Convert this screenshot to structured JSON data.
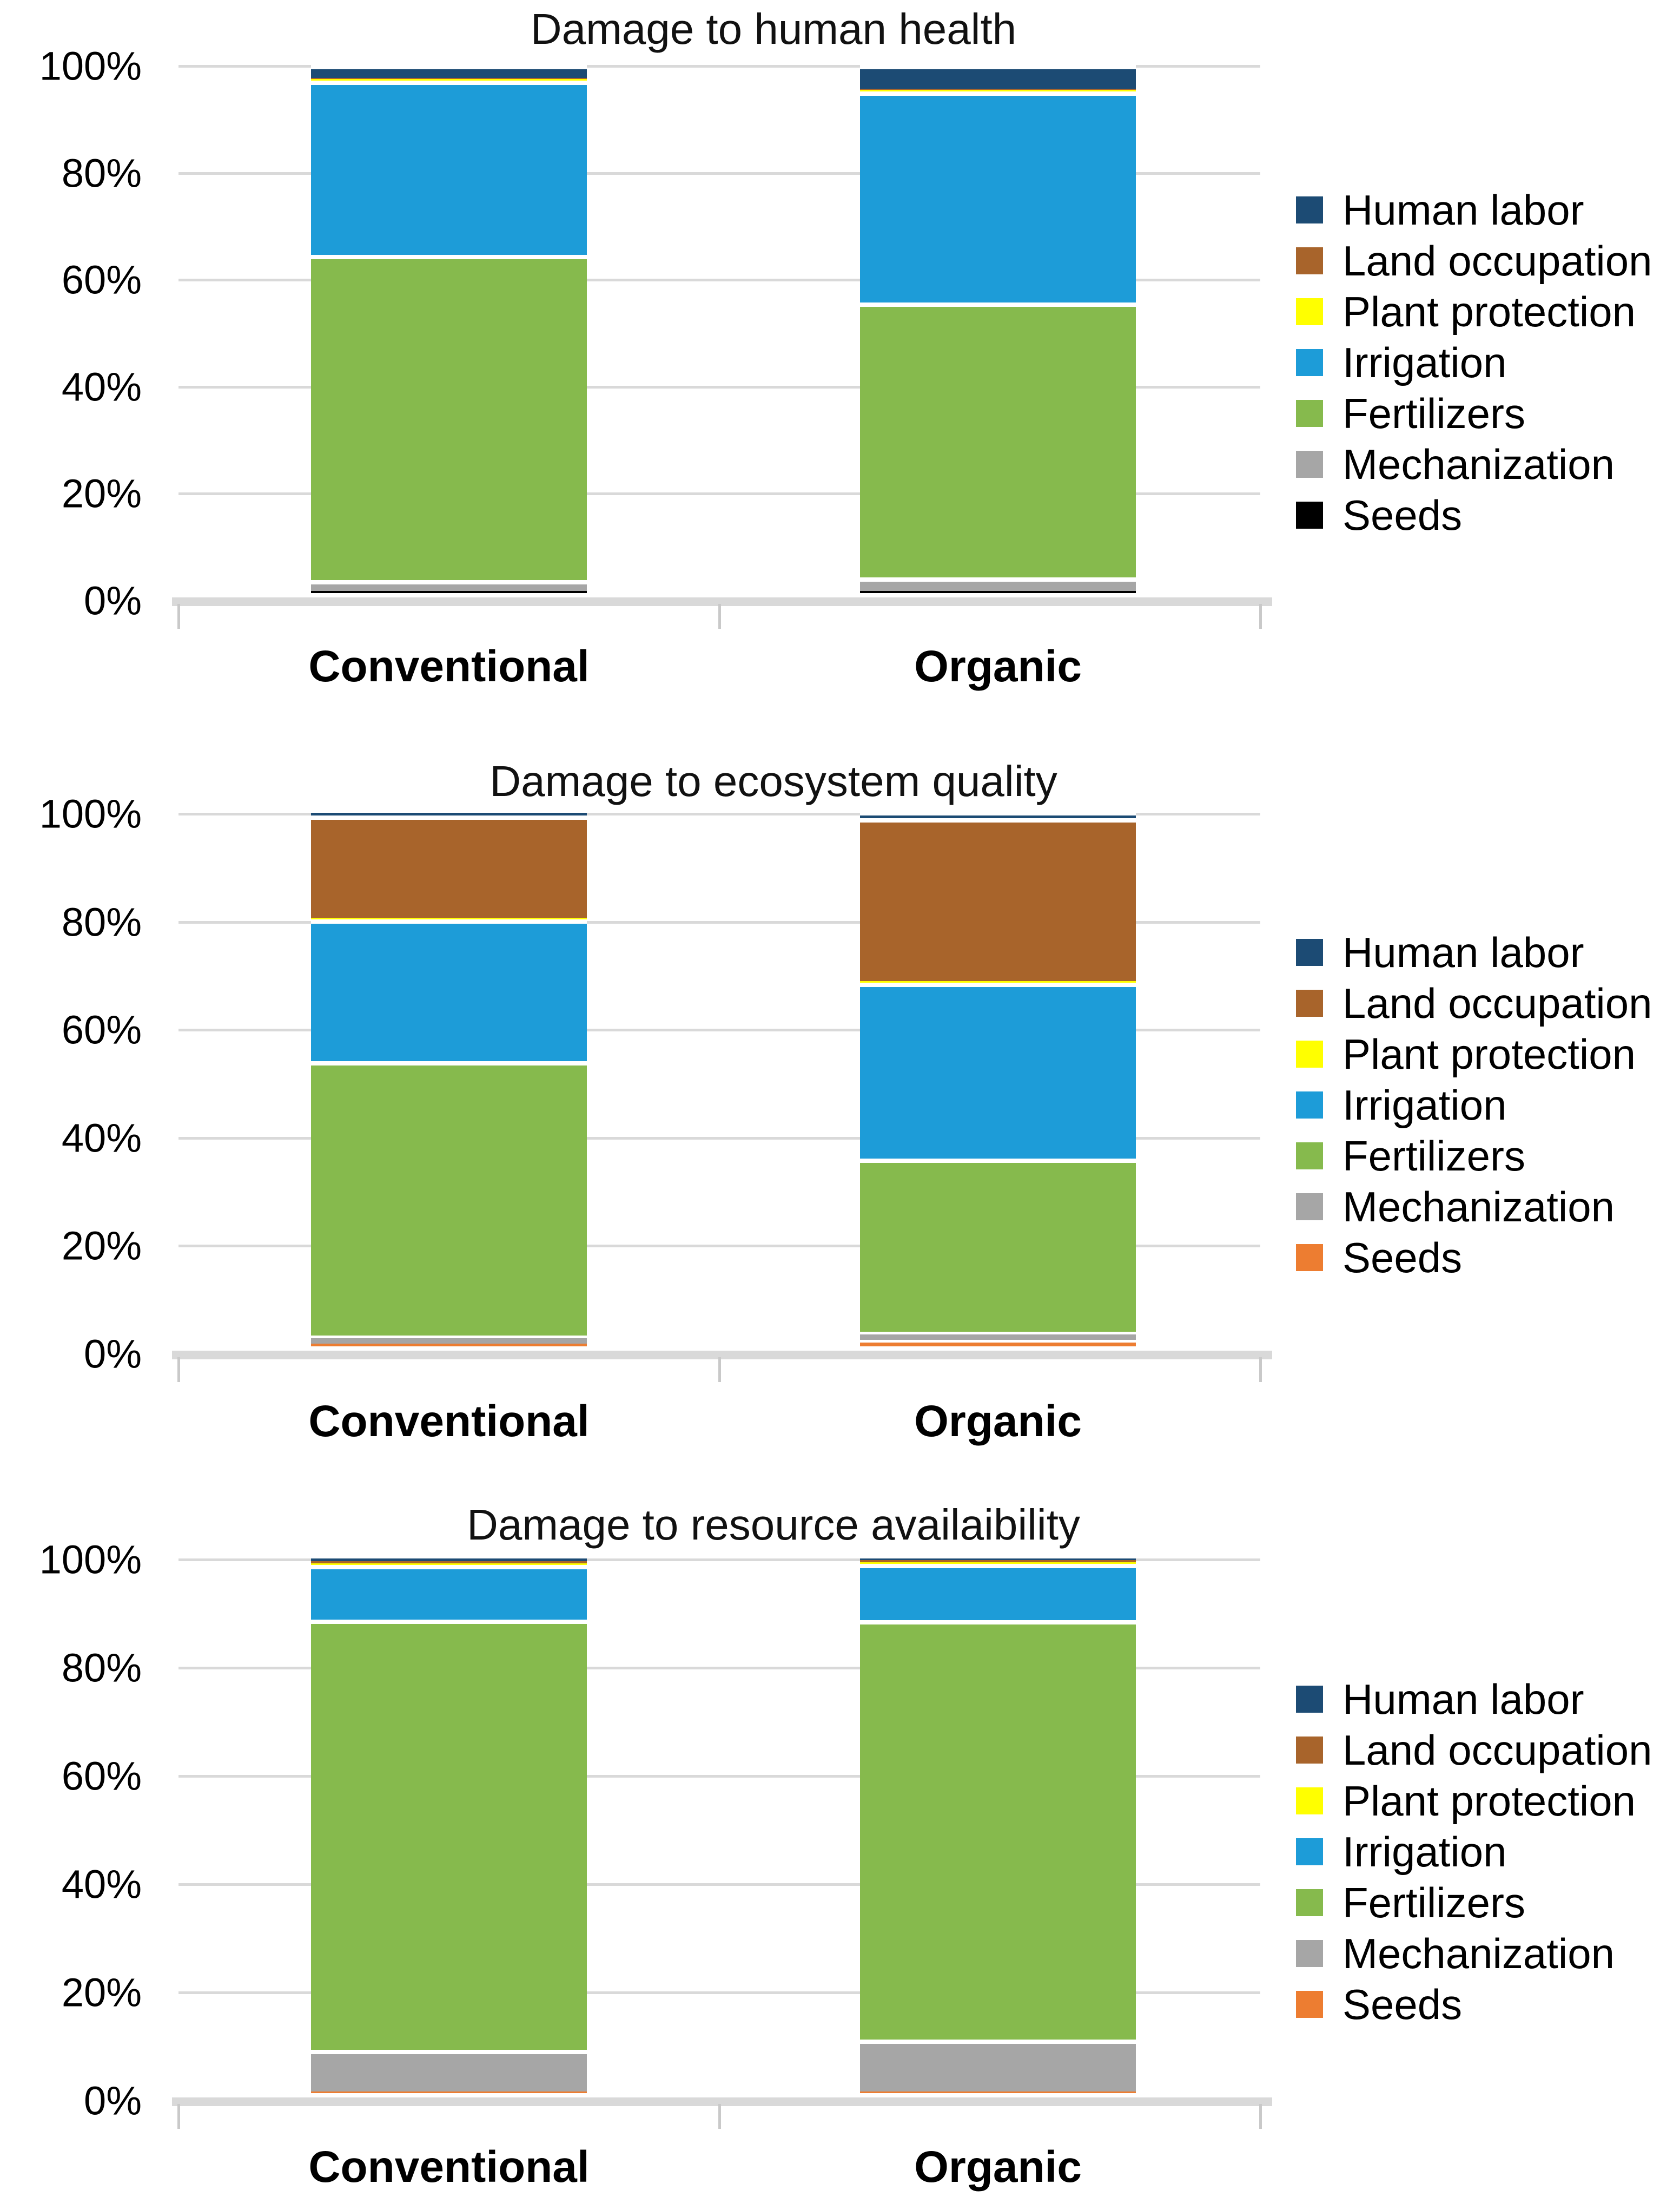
{
  "page": {
    "background": "#ffffff",
    "text_color": "#000000",
    "gridline_color": "#d9d9d9"
  },
  "chart_data": [
    {
      "type": "bar",
      "stacked": true,
      "units": "percent",
      "title": "Damage to human health",
      "categories": [
        "Conventional",
        "Organic"
      ],
      "series": [
        {
          "name": "Seeds",
          "color": "#000000",
          "values": [
            0.4,
            0.4
          ]
        },
        {
          "name": "Mechanization",
          "color": "#a6a6a6",
          "values": [
            2.1,
            2.6
          ]
        },
        {
          "name": "Fertilizers",
          "color": "#86ba4d",
          "values": [
            61.5,
            52.0
          ]
        },
        {
          "name": "Irrigation",
          "color": "#1d9cd8",
          "values": [
            33.0,
            40.0
          ]
        },
        {
          "name": "Plant protection",
          "color": "#ffff00",
          "values": [
            0.3,
            0.3
          ]
        },
        {
          "name": "Land occupation",
          "color": "#a8642b",
          "values": [
            0.2,
            0.2
          ]
        },
        {
          "name": "Human labor",
          "color": "#1c4b74",
          "values": [
            2.5,
            4.5
          ]
        }
      ],
      "y_ticks": [
        "100%",
        "80%",
        "60%",
        "40%",
        "20%",
        "0%"
      ],
      "ylim": [
        0,
        100
      ],
      "grid": true,
      "legend_position": "right",
      "legend_order": [
        "Human labor",
        "Land occupation",
        "Plant protection",
        "Irrigation",
        "Fertilizers",
        "Mechanization",
        "Seeds"
      ]
    },
    {
      "type": "bar",
      "stacked": true,
      "units": "percent",
      "title": "Damage to ecosystem quality",
      "categories": [
        "Conventional",
        "Organic"
      ],
      "series": [
        {
          "name": "Seeds",
          "color": "#ed7d31",
          "values": [
            0.5,
            1.2
          ]
        },
        {
          "name": "Mechanization",
          "color": "#a6a6a6",
          "values": [
            1.5,
            1.5
          ]
        },
        {
          "name": "Fertilizers",
          "color": "#86ba4d",
          "values": [
            51.5,
            32.5
          ]
        },
        {
          "name": "Irrigation",
          "color": "#1d9cd8",
          "values": [
            26.5,
            33.0
          ]
        },
        {
          "name": "Plant protection",
          "color": "#ffff00",
          "values": [
            0.3,
            0.3
          ]
        },
        {
          "name": "Land occupation",
          "color": "#a8642b",
          "values": [
            19.2,
            30.5
          ]
        },
        {
          "name": "Human labor",
          "color": "#1c4b74",
          "values": [
            0.5,
            1.0
          ]
        }
      ],
      "y_ticks": [
        "100%",
        "80%",
        "60%",
        "40%",
        "20%",
        "0%"
      ],
      "ylim": [
        0,
        100
      ],
      "grid": true,
      "legend_position": "right",
      "legend_order": [
        "Human labor",
        "Land occupation",
        "Plant protection",
        "Irrigation",
        "Fertilizers",
        "Mechanization",
        "Seeds"
      ]
    },
    {
      "type": "bar",
      "stacked": true,
      "units": "percent",
      "title": "Damage to resource availaibility",
      "categories": [
        "Conventional",
        "Organic"
      ],
      "series": [
        {
          "name": "Seeds",
          "color": "#ed7d31",
          "values": [
            0.3,
            0.3
          ]
        },
        {
          "name": "Mechanization",
          "color": "#a6a6a6",
          "values": [
            7.8,
            9.7
          ]
        },
        {
          "name": "Fertilizers",
          "color": "#86ba4d",
          "values": [
            80.5,
            78.5
          ]
        },
        {
          "name": "Irrigation",
          "color": "#1d9cd8",
          "values": [
            10.2,
            10.5
          ]
        },
        {
          "name": "Plant protection",
          "color": "#ffff00",
          "values": [
            0.3,
            0.3
          ]
        },
        {
          "name": "Land occupation",
          "color": "#a8642b",
          "values": [
            0.4,
            0.4
          ]
        },
        {
          "name": "Human labor",
          "color": "#1c4b74",
          "values": [
            0.5,
            0.3
          ]
        }
      ],
      "y_ticks": [
        "100%",
        "80%",
        "60%",
        "40%",
        "20%",
        "0%"
      ],
      "ylim": [
        0,
        100
      ],
      "grid": true,
      "legend_position": "right",
      "legend_order": [
        "Human labor",
        "Land occupation",
        "Plant protection",
        "Irrigation",
        "Fertilizers",
        "Mechanization",
        "Seeds"
      ]
    }
  ]
}
